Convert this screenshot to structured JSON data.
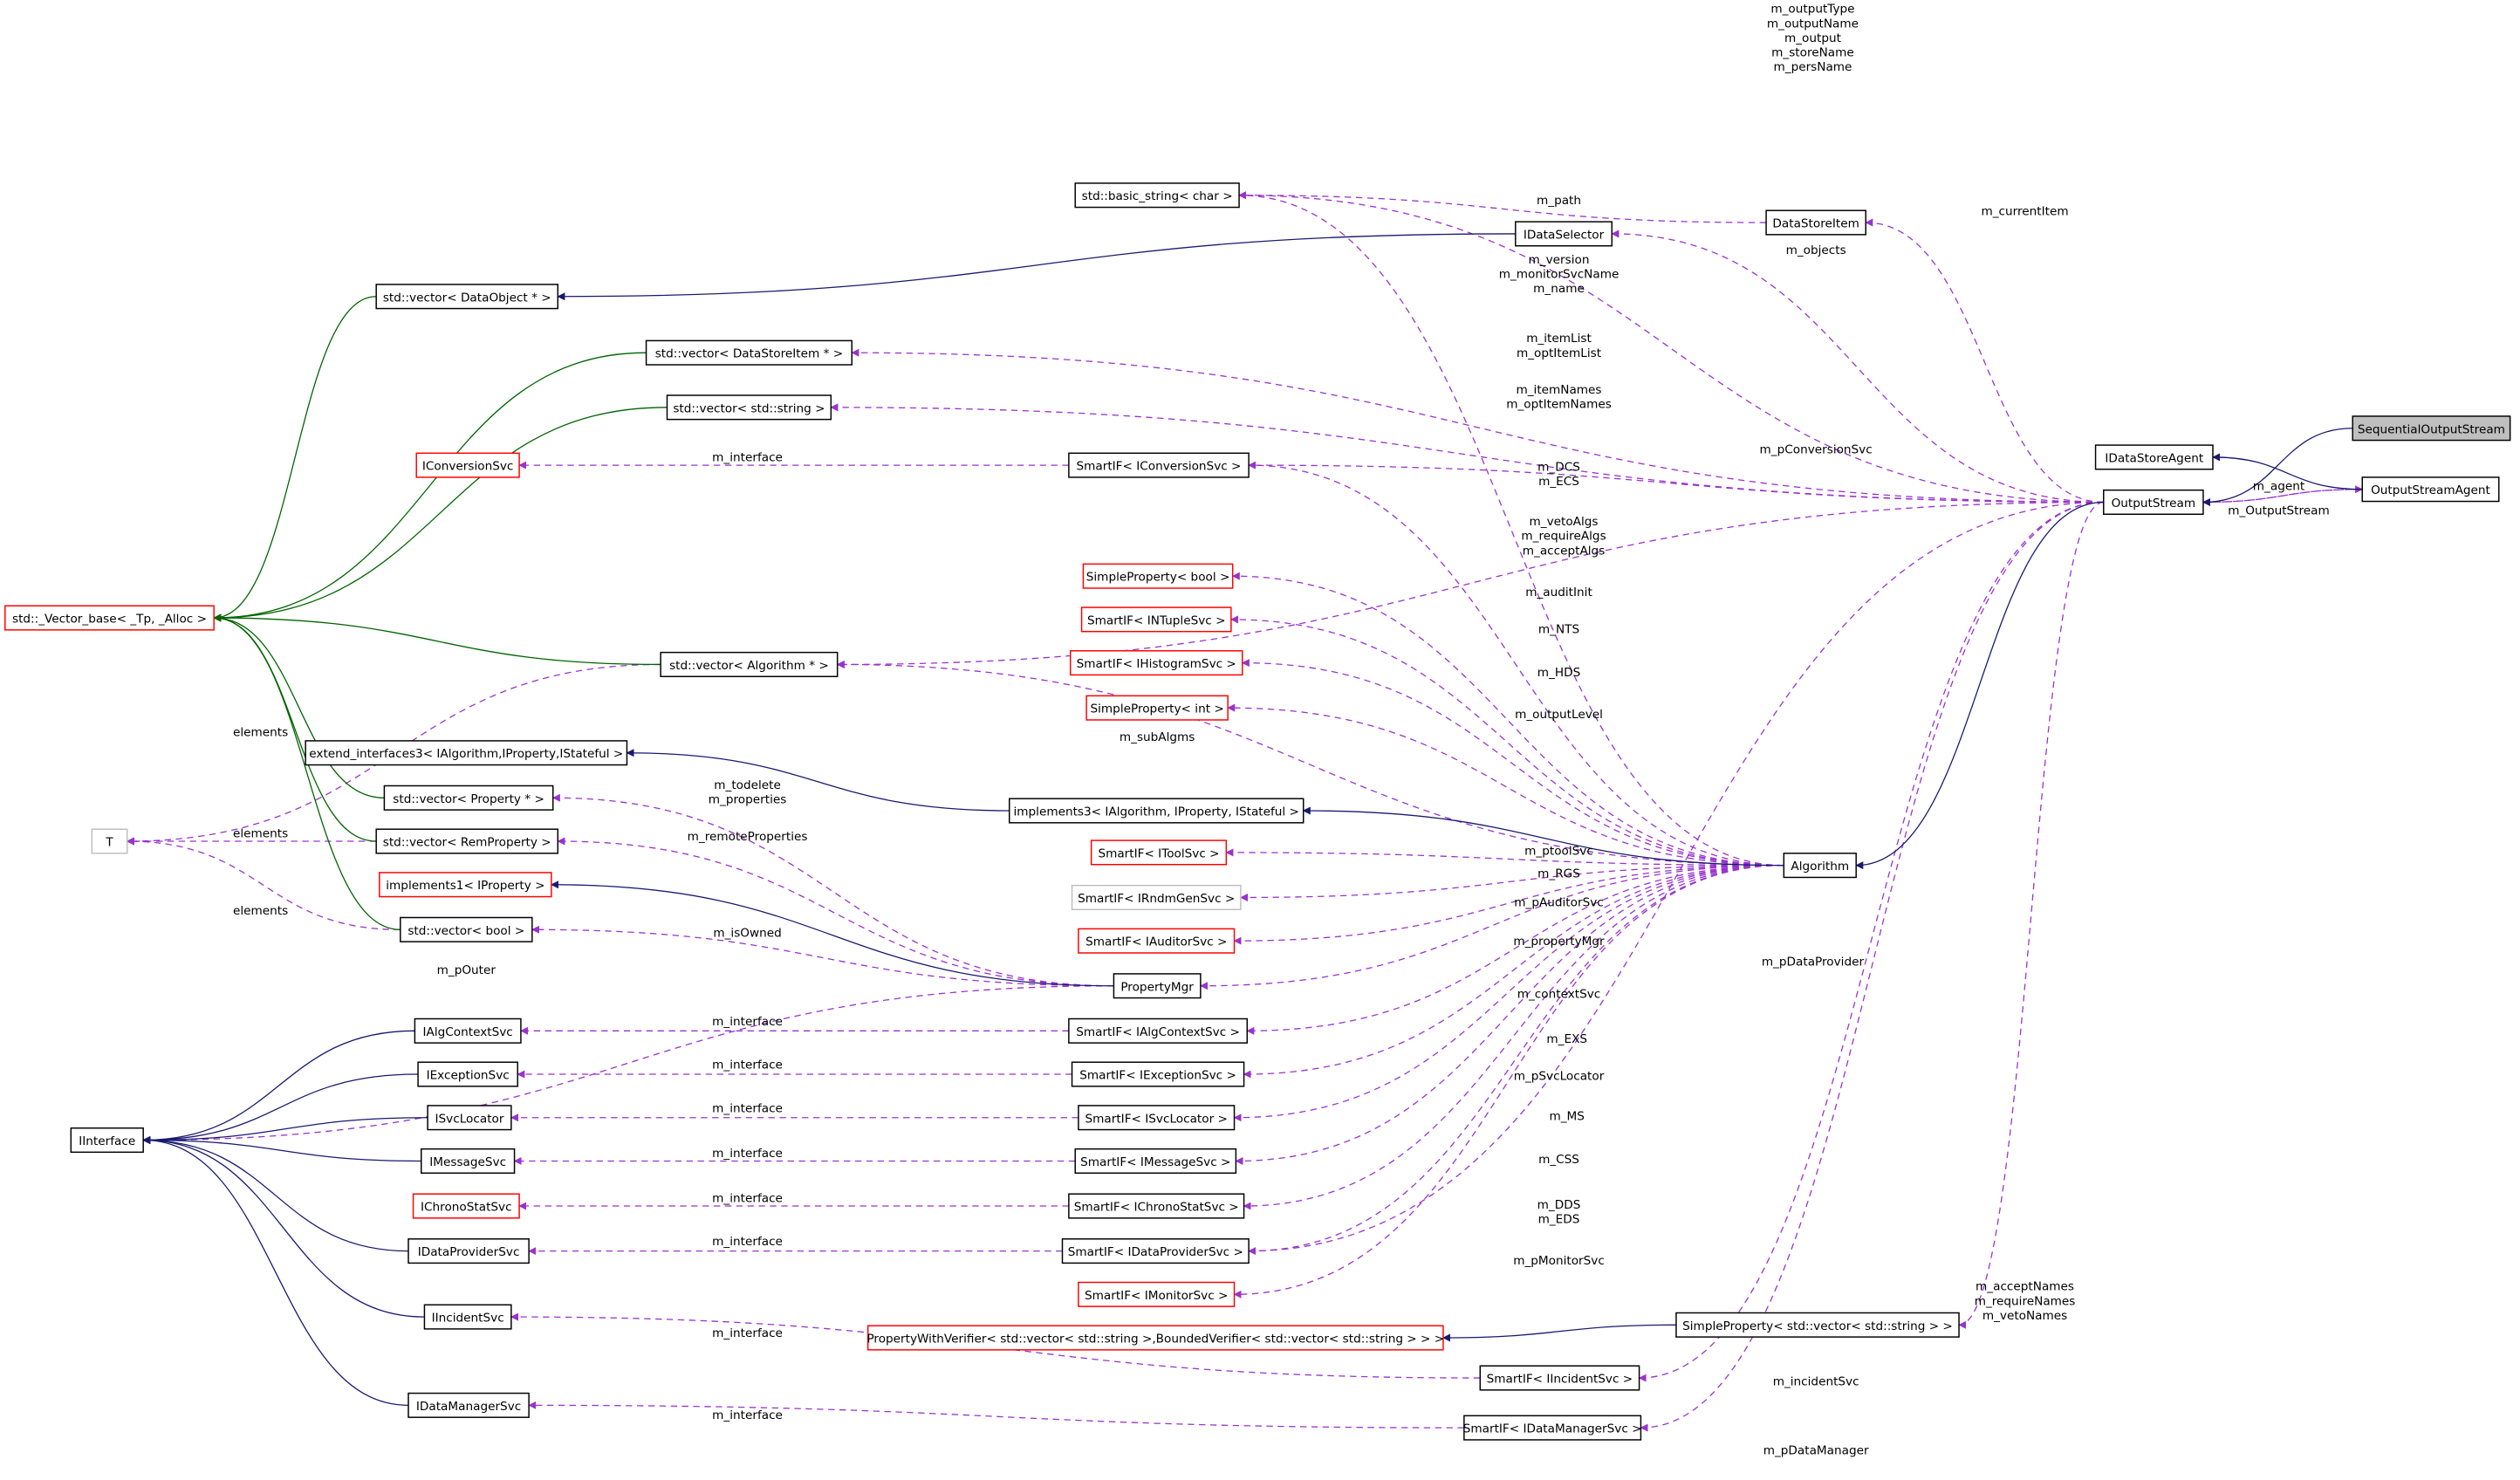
{
  "colors": {
    "member": "#9a32cd",
    "inherit": "#191970",
    "template": "#006400",
    "undocumented": "#ff0000",
    "focus_fill": "#bfbfbf"
  },
  "nodes": [
    {
      "id": "basic_string",
      "label": "std::basic_string< char >",
      "style": "normal"
    },
    {
      "id": "DataStoreItem",
      "label": "DataStoreItem",
      "style": "normal"
    },
    {
      "id": "IDataSelector",
      "label": "IDataSelector",
      "style": "normal"
    },
    {
      "id": "vec_DataObject",
      "label": "std::vector< DataObject * >",
      "style": "normal"
    },
    {
      "id": "vec_DataStoreItem",
      "label": "std::vector< DataStoreItem * >",
      "style": "normal"
    },
    {
      "id": "vec_string",
      "label": "std::vector< std::string >",
      "style": "normal"
    },
    {
      "id": "IConversionSvc",
      "label": "IConversionSvc",
      "style": "red"
    },
    {
      "id": "SI_IConversionSvc",
      "label": "SmartIF< IConversionSvc >",
      "style": "normal"
    },
    {
      "id": "SequentialOutputStream",
      "label": "SequentialOutputStream",
      "style": "highlight"
    },
    {
      "id": "IDataStoreAgent",
      "label": "IDataStoreAgent",
      "style": "normal"
    },
    {
      "id": "OutputStreamAgent",
      "label": "OutputStreamAgent",
      "style": "normal"
    },
    {
      "id": "OutputStream",
      "label": "OutputStream",
      "style": "normal"
    },
    {
      "id": "Vector_base",
      "label": "std::_Vector_base< _Tp, _Alloc >",
      "style": "red"
    },
    {
      "id": "SP_bool",
      "label": "SimpleProperty< bool >",
      "style": "red"
    },
    {
      "id": "SI_INTupleSvc",
      "label": "SmartIF< INTupleSvc >",
      "style": "red"
    },
    {
      "id": "SI_IHistogramSvc",
      "label": "SmartIF< IHistogramSvc >",
      "style": "red"
    },
    {
      "id": "SP_int",
      "label": "SimpleProperty< int >",
      "style": "red"
    },
    {
      "id": "vec_Algorithm",
      "label": "std::vector< Algorithm * >",
      "style": "normal"
    },
    {
      "id": "extend_interfaces3",
      "label": "extend_interfaces3< IAlgorithm,IProperty,IStateful >",
      "style": "normal"
    },
    {
      "id": "vec_Property",
      "label": "std::vector< Property * >",
      "style": "normal"
    },
    {
      "id": "implements3",
      "label": "implements3< IAlgorithm, IProperty, IStateful >",
      "style": "normal"
    },
    {
      "id": "T",
      "label": "T",
      "style": "gray"
    },
    {
      "id": "vec_RemProperty",
      "label": "std::vector< RemProperty >",
      "style": "normal"
    },
    {
      "id": "SI_IToolSvc",
      "label": "SmartIF< IToolSvc >",
      "style": "red"
    },
    {
      "id": "Algorithm",
      "label": "Algorithm",
      "style": "normal"
    },
    {
      "id": "implements1",
      "label": "implements1< IProperty >",
      "style": "red"
    },
    {
      "id": "SI_IRndmGenSvc",
      "label": "SmartIF< IRndmGenSvc >",
      "style": "gray"
    },
    {
      "id": "vec_bool",
      "label": "std::vector< bool >",
      "style": "normal"
    },
    {
      "id": "SI_IAuditorSvc",
      "label": "SmartIF< IAuditorSvc >",
      "style": "red"
    },
    {
      "id": "PropertyMgr",
      "label": "PropertyMgr",
      "style": "normal"
    },
    {
      "id": "IAlgContextSvc",
      "label": "IAlgContextSvc",
      "style": "normal"
    },
    {
      "id": "SI_IAlgContextSvc",
      "label": "SmartIF< IAlgContextSvc >",
      "style": "normal"
    },
    {
      "id": "IExceptionSvc",
      "label": "IExceptionSvc",
      "style": "normal"
    },
    {
      "id": "SI_IExceptionSvc",
      "label": "SmartIF< IExceptionSvc >",
      "style": "normal"
    },
    {
      "id": "ISvcLocator",
      "label": "ISvcLocator",
      "style": "normal"
    },
    {
      "id": "SI_ISvcLocator",
      "label": "SmartIF< ISvcLocator >",
      "style": "normal"
    },
    {
      "id": "IInterface",
      "label": "IInterface",
      "style": "normal"
    },
    {
      "id": "IMessageSvc",
      "label": "IMessageSvc",
      "style": "normal"
    },
    {
      "id": "SI_IMessageSvc",
      "label": "SmartIF< IMessageSvc >",
      "style": "normal"
    },
    {
      "id": "IChronoStatSvc",
      "label": "IChronoStatSvc",
      "style": "red"
    },
    {
      "id": "SI_IChronoStatSvc",
      "label": "SmartIF< IChronoStatSvc >",
      "style": "normal"
    },
    {
      "id": "IDataProviderSvc",
      "label": "IDataProviderSvc",
      "style": "normal"
    },
    {
      "id": "SI_IDataProviderSvc",
      "label": "SmartIF< IDataProviderSvc >",
      "style": "normal"
    },
    {
      "id": "SI_IMonitorSvc",
      "label": "SmartIF< IMonitorSvc >",
      "style": "red"
    },
    {
      "id": "IIncidentSvc",
      "label": "IIncidentSvc",
      "style": "normal"
    },
    {
      "id": "PropertyWithVerifier",
      "label": "PropertyWithVerifier< std::vector< std::string >,BoundedVerifier< std::vector< std::string > > >",
      "style": "red"
    },
    {
      "id": "SP_vec_string",
      "label": "SimpleProperty< std::vector< std::string > >",
      "style": "normal"
    },
    {
      "id": "SI_IIncidentSvc",
      "label": "SmartIF< IIncidentSvc >",
      "style": "normal"
    },
    {
      "id": "IDataManagerSvc",
      "label": "IDataManagerSvc",
      "style": "normal"
    },
    {
      "id": "SI_IDataManagerSvc",
      "label": "SmartIF< IDataManagerSvc >",
      "style": "normal"
    }
  ],
  "edges": [
    {
      "from": "OutputStream",
      "to": "basic_string",
      "kind": "member",
      "labels": [
        "m_outputType",
        "m_outputName",
        "m_output",
        "m_storeName",
        "m_persName"
      ]
    },
    {
      "from": "DataStoreItem",
      "to": "basic_string",
      "kind": "member",
      "labels": [
        "m_path"
      ]
    },
    {
      "from": "OutputStream",
      "to": "DataStoreItem",
      "kind": "member",
      "labels": [
        "m_currentItem"
      ]
    },
    {
      "from": "OutputStream",
      "to": "IDataSelector",
      "kind": "member",
      "labels": [
        "m_objects"
      ]
    },
    {
      "from": "Algorithm",
      "to": "basic_string",
      "kind": "member",
      "labels": [
        "m_version",
        "m_monitorSvcName",
        "m_name"
      ]
    },
    {
      "from": "OutputStream",
      "to": "vec_DataStoreItem",
      "kind": "member",
      "labels": [
        "m_itemList",
        "m_optItemList"
      ]
    },
    {
      "from": "OutputStream",
      "to": "vec_string",
      "kind": "member",
      "labels": [
        "m_itemNames",
        "m_optItemNames"
      ]
    },
    {
      "from": "OutputStream",
      "to": "SI_IConversionSvc",
      "kind": "member",
      "labels": [
        "m_pConversionSvc"
      ]
    },
    {
      "from": "Algorithm",
      "to": "SI_IConversionSvc",
      "kind": "member",
      "labels": [
        "m_DCS",
        "m_ECS"
      ]
    },
    {
      "from": "SI_IConversionSvc",
      "to": "IConversionSvc",
      "kind": "member",
      "labels": [
        "m_interface"
      ]
    },
    {
      "from": "OutputStream",
      "to": "vec_Algorithm",
      "kind": "member",
      "labels": [
        "m_vetoAlgs",
        "m_requireAlgs",
        "m_acceptAlgs"
      ]
    },
    {
      "from": "Algorithm",
      "to": "SP_bool",
      "kind": "member",
      "labels": [
        "m_auditInit"
      ]
    },
    {
      "from": "Algorithm",
      "to": "SI_INTupleSvc",
      "kind": "member",
      "labels": [
        "m_NTS"
      ]
    },
    {
      "from": "Algorithm",
      "to": "SI_IHistogramSvc",
      "kind": "member",
      "labels": [
        "m_HDS"
      ]
    },
    {
      "from": "Algorithm",
      "to": "SP_int",
      "kind": "member",
      "labels": [
        "m_outputLevel"
      ]
    },
    {
      "from": "Algorithm",
      "to": "vec_Algorithm",
      "kind": "member",
      "labels": [
        "m_subAlgms"
      ]
    },
    {
      "from": "vec_Algorithm",
      "to": "T",
      "kind": "member",
      "labels": [
        "elements"
      ]
    },
    {
      "from": "vec_RemProperty",
      "to": "T",
      "kind": "member",
      "labels": [
        "elements"
      ]
    },
    {
      "from": "vec_bool",
      "to": "T",
      "kind": "member",
      "labels": [
        "elements"
      ]
    },
    {
      "from": "PropertyMgr",
      "to": "vec_Property",
      "kind": "member",
      "labels": [
        "m_todelete",
        "m_properties"
      ]
    },
    {
      "from": "PropertyMgr",
      "to": "vec_RemProperty",
      "kind": "member",
      "labels": [
        "m_remoteProperties"
      ]
    },
    {
      "from": "PropertyMgr",
      "to": "vec_bool",
      "kind": "member",
      "labels": [
        "m_isOwned"
      ]
    },
    {
      "from": "PropertyMgr",
      "to": "IInterface",
      "kind": "member",
      "labels": [
        "m_pOuter"
      ]
    },
    {
      "from": "Algorithm",
      "to": "SI_IToolSvc",
      "kind": "member",
      "labels": [
        "m_ptoolSvc"
      ]
    },
    {
      "from": "Algorithm",
      "to": "SI_IRndmGenSvc",
      "kind": "member",
      "labels": [
        "m_RGS"
      ]
    },
    {
      "from": "Algorithm",
      "to": "SI_IAuditorSvc",
      "kind": "member",
      "labels": [
        "m_pAuditorSvc"
      ]
    },
    {
      "from": "Algorithm",
      "to": "PropertyMgr",
      "kind": "member",
      "labels": [
        "m_propertyMgr"
      ]
    },
    {
      "from": "Algorithm",
      "to": "SI_IAlgContextSvc",
      "kind": "member",
      "labels": [
        "m_contextSvc"
      ]
    },
    {
      "from": "Algorithm",
      "to": "SI_IExceptionSvc",
      "kind": "member",
      "labels": [
        "m_EXS"
      ]
    },
    {
      "from": "Algorithm",
      "to": "SI_ISvcLocator",
      "kind": "member",
      "labels": [
        "m_pSvcLocator"
      ]
    },
    {
      "from": "Algorithm",
      "to": "SI_IMessageSvc",
      "kind": "member",
      "labels": [
        "m_MS"
      ]
    },
    {
      "from": "Algorithm",
      "to": "SI_IChronoStatSvc",
      "kind": "member",
      "labels": [
        "m_CSS"
      ]
    },
    {
      "from": "Algorithm",
      "to": "SI_IDataProviderSvc",
      "kind": "member",
      "labels": [
        "m_DDS",
        "m_EDS"
      ]
    },
    {
      "from": "Algorithm",
      "to": "SI_IMonitorSvc",
      "kind": "member",
      "labels": [
        "m_pMonitorSvc"
      ]
    },
    {
      "from": "OutputStream",
      "to": "SI_IDataProviderSvc",
      "kind": "member",
      "labels": [
        "m_pDataProvider"
      ]
    },
    {
      "from": "SI_IAlgContextSvc",
      "to": "IAlgContextSvc",
      "kind": "member",
      "labels": [
        "m_interface"
      ]
    },
    {
      "from": "SI_IExceptionSvc",
      "to": "IExceptionSvc",
      "kind": "member",
      "labels": [
        "m_interface"
      ]
    },
    {
      "from": "SI_ISvcLocator",
      "to": "ISvcLocator",
      "kind": "member",
      "labels": [
        "m_interface"
      ]
    },
    {
      "from": "SI_IMessageSvc",
      "to": "IMessageSvc",
      "kind": "member",
      "labels": [
        "m_interface"
      ]
    },
    {
      "from": "SI_IChronoStatSvc",
      "to": "IChronoStatSvc",
      "kind": "member",
      "labels": [
        "m_interface"
      ]
    },
    {
      "from": "SI_IDataProviderSvc",
      "to": "IDataProviderSvc",
      "kind": "member",
      "labels": [
        "m_interface"
      ]
    },
    {
      "from": "SI_IIncidentSvc",
      "to": "IIncidentSvc",
      "kind": "member",
      "labels": [
        "m_interface"
      ]
    },
    {
      "from": "SI_IDataManagerSvc",
      "to": "IDataManagerSvc",
      "kind": "member",
      "labels": [
        "m_interface"
      ]
    },
    {
      "from": "OutputStream",
      "to": "SP_vec_string",
      "kind": "member",
      "labels": [
        "m_acceptNames",
        "m_requireNames",
        "m_vetoNames"
      ]
    },
    {
      "from": "OutputStream",
      "to": "SI_IIncidentSvc",
      "kind": "member",
      "labels": [
        "m_incidentSvc"
      ]
    },
    {
      "from": "OutputStream",
      "to": "SI_IDataManagerSvc",
      "kind": "member",
      "labels": [
        "m_pDataManager"
      ]
    },
    {
      "from": "OutputStream",
      "to": "OutputStreamAgent",
      "kind": "member",
      "labels": [
        "m_agent"
      ]
    },
    {
      "from": "OutputStreamAgent",
      "to": "OutputStream",
      "kind": "member",
      "labels": [
        "m_OutputStream"
      ]
    },
    {
      "from": "IDataSelector",
      "to": "vec_DataObject",
      "kind": "inherit",
      "labels": []
    },
    {
      "from": "implements3",
      "to": "extend_interfaces3",
      "kind": "inherit",
      "labels": []
    },
    {
      "from": "Algorithm",
      "to": "implements3",
      "kind": "inherit",
      "labels": []
    },
    {
      "from": "PropertyMgr",
      "to": "implements1",
      "kind": "inherit",
      "labels": []
    },
    {
      "from": "IAlgContextSvc",
      "to": "IInterface",
      "kind": "inherit",
      "labels": []
    },
    {
      "from": "IExceptionSvc",
      "to": "IInterface",
      "kind": "inherit",
      "labels": []
    },
    {
      "from": "ISvcLocator",
      "to": "IInterface",
      "kind": "inherit",
      "labels": []
    },
    {
      "from": "IMessageSvc",
      "to": "IInterface",
      "kind": "inherit",
      "labels": []
    },
    {
      "from": "IDataProviderSvc",
      "to": "IInterface",
      "kind": "inherit",
      "labels": []
    },
    {
      "from": "IIncidentSvc",
      "to": "IInterface",
      "kind": "inherit",
      "labels": []
    },
    {
      "from": "IDataManagerSvc",
      "to": "IInterface",
      "kind": "inherit",
      "labels": []
    },
    {
      "from": "SP_vec_string",
      "to": "PropertyWithVerifier",
      "kind": "inherit",
      "labels": []
    },
    {
      "from": "OutputStream",
      "to": "Algorithm",
      "kind": "inherit",
      "labels": []
    },
    {
      "from": "OutputStreamAgent",
      "to": "IDataStoreAgent",
      "kind": "inherit",
      "labels": []
    },
    {
      "from": "SequentialOutputStream",
      "to": "OutputStream",
      "kind": "inherit",
      "labels": []
    },
    {
      "from": "vec_DataObject",
      "to": "Vector_base",
      "kind": "template",
      "labels": []
    },
    {
      "from": "vec_DataStoreItem",
      "to": "Vector_base",
      "kind": "template",
      "labels": []
    },
    {
      "from": "vec_string",
      "to": "Vector_base",
      "kind": "template",
      "labels": []
    },
    {
      "from": "vec_Algorithm",
      "to": "Vector_base",
      "kind": "template",
      "labels": []
    },
    {
      "from": "vec_Property",
      "to": "Vector_base",
      "kind": "template",
      "labels": []
    },
    {
      "from": "vec_RemProperty",
      "to": "Vector_base",
      "kind": "template",
      "labels": []
    },
    {
      "from": "vec_bool",
      "to": "Vector_base",
      "kind": "template",
      "labels": []
    }
  ]
}
